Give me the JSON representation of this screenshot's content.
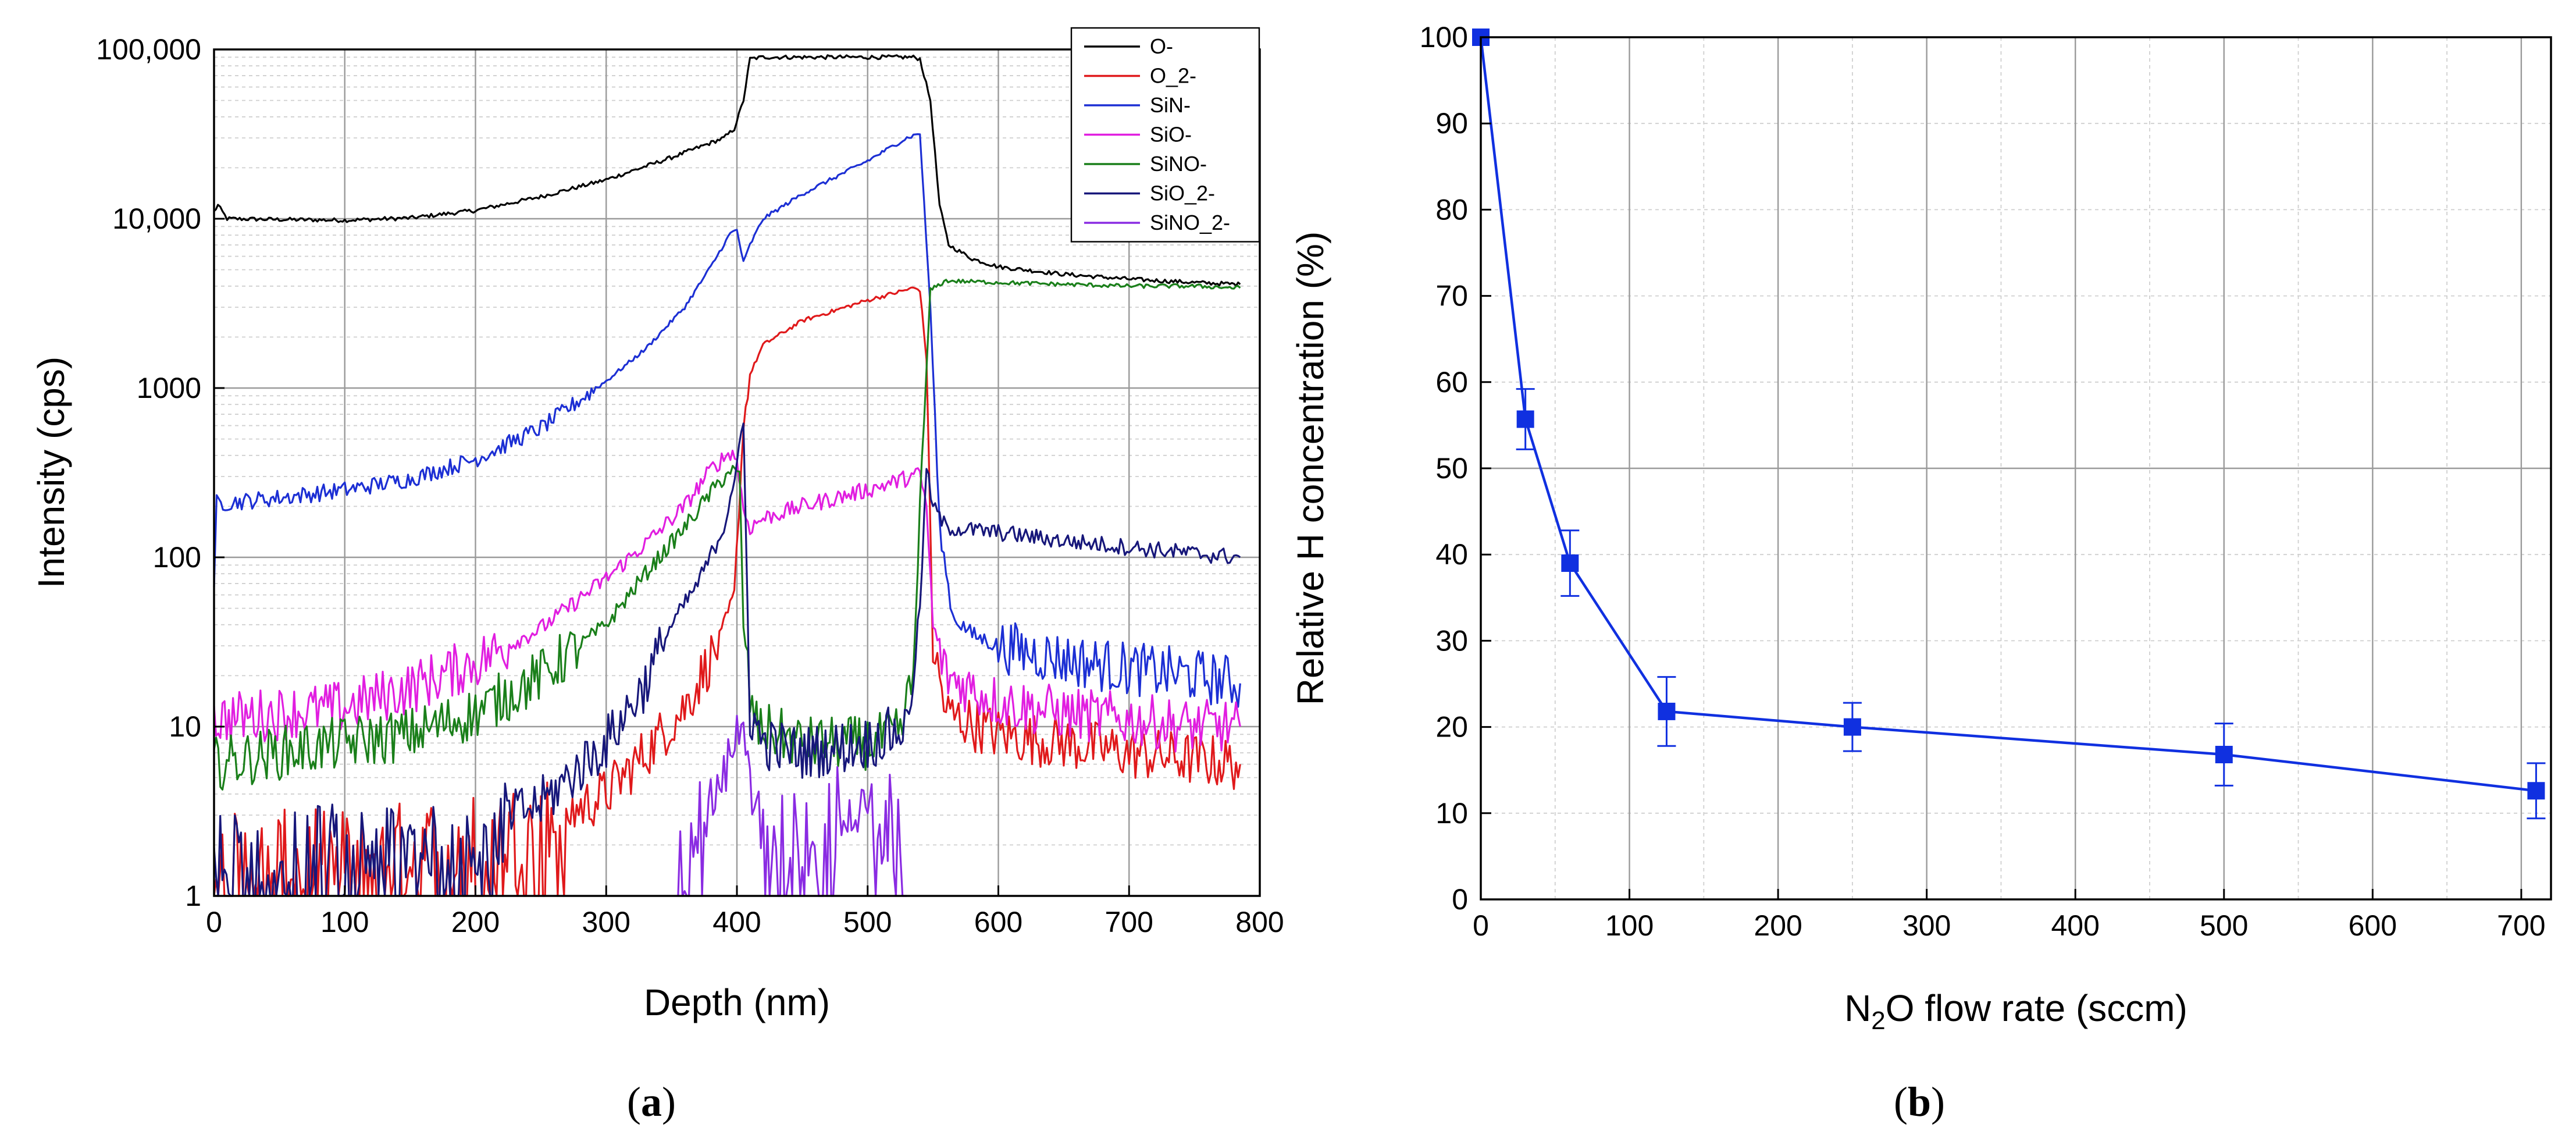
{
  "chart_data": [
    {
      "panel": "(a)",
      "type": "line",
      "title": "",
      "xlabel": "Depth (nm)",
      "ylabel": "Intensity (cps)",
      "xscale": "linear",
      "yscale": "log",
      "xlim": [
        0,
        800
      ],
      "ylim": [
        1,
        100000
      ],
      "grid": true,
      "legend_position": "top-right",
      "x_ticks": [
        0,
        100,
        200,
        300,
        400,
        500,
        600,
        700,
        800
      ],
      "x_tick_labels": [
        "0",
        "100",
        "200",
        "300",
        "400",
        "500",
        "600",
        "700",
        "800"
      ],
      "y_ticks": [
        1,
        10,
        100,
        1000,
        10000,
        100000
      ],
      "y_tick_labels": [
        "1",
        "10",
        "100",
        "1000",
        "10,000",
        "100,000"
      ],
      "series": [
        {
          "name": "O-",
          "color": "#000000",
          "x": [
            0,
            3,
            10,
            50,
            100,
            150,
            200,
            250,
            300,
            350,
            390,
            398,
            405,
            410,
            420,
            450,
            500,
            535,
            540,
            548,
            555,
            562,
            580,
            600,
            650,
            700,
            750,
            785
          ],
          "y": [
            11000,
            12000,
            10000,
            9900,
            9800,
            10100,
            11200,
            13500,
            17000,
            23000,
            30000,
            34000,
            50000,
            88000,
            90000,
            90000,
            90000,
            90000,
            88000,
            50000,
            12000,
            7000,
            5800,
            5200,
            4700,
            4400,
            4200,
            4100
          ]
        },
        {
          "name": "O_2-",
          "color": "#e0191b",
          "x": [
            0,
            100,
            150,
            200,
            250,
            300,
            330,
            360,
            385,
            398,
            405,
            410,
            420,
            450,
            500,
            535,
            540,
            545,
            550,
            560,
            600,
            650,
            700,
            785
          ],
          "y": [
            1.5,
            1.6,
            1.8,
            2,
            2.5,
            4,
            7,
            13,
            30,
            60,
            600,
            1200,
            1800,
            2500,
            3300,
            3900,
            3800,
            1500,
            30,
            12,
            9,
            8,
            7,
            6
          ]
        },
        {
          "name": "SiN-",
          "color": "#1c2fd4",
          "x": [
            0,
            2,
            10,
            50,
            100,
            150,
            200,
            250,
            300,
            330,
            360,
            380,
            395,
            400,
            405,
            410,
            420,
            450,
            500,
            530,
            540,
            548,
            555,
            565,
            580,
            600,
            650,
            700,
            750,
            785
          ],
          "y": [
            60,
            210,
            210,
            225,
            250,
            290,
            380,
            580,
            1100,
            1700,
            3000,
            5200,
            8200,
            8600,
            5500,
            7000,
            10000,
            14000,
            22000,
            30000,
            32000,
            3000,
            150,
            45,
            35,
            30,
            25,
            22,
            20,
            18
          ]
        },
        {
          "name": "SiO-",
          "color": "#e11ee0",
          "x": [
            0,
            50,
            100,
            150,
            200,
            250,
            300,
            330,
            360,
            380,
            395,
            400,
            405,
            410,
            420,
            450,
            500,
            540,
            545,
            550,
            560,
            600,
            650,
            700,
            750,
            785
          ],
          "y": [
            11,
            12,
            13,
            17,
            24,
            38,
            75,
            120,
            200,
            330,
            420,
            380,
            190,
            150,
            170,
            200,
            250,
            310,
            200,
            40,
            20,
            14,
            12,
            11,
            10,
            10
          ]
        },
        {
          "name": "SiNO-",
          "color": "#1a7f1a",
          "x": [
            0,
            50,
            100,
            150,
            200,
            250,
            300,
            330,
            360,
            380,
            395,
            402,
            405,
            410,
            415,
            450,
            500,
            525,
            535,
            540,
            548,
            560,
            600,
            650,
            700,
            750,
            785
          ],
          "y": [
            6,
            7,
            8,
            9,
            12,
            20,
            40,
            80,
            150,
            240,
            330,
            300,
            40,
            15,
            10,
            8,
            8,
            9,
            20,
            200,
            3800,
            4300,
            4200,
            4100,
            4000,
            4000,
            3900
          ]
        },
        {
          "name": "SiO_2-",
          "color": "#17177a",
          "x": [
            0,
            100,
            150,
            200,
            250,
            300,
            330,
            350,
            370,
            390,
            400,
            405,
            410,
            420,
            450,
            500,
            530,
            540,
            545,
            550,
            560,
            600,
            650,
            700,
            750,
            785
          ],
          "y": [
            1.5,
            1.8,
            2,
            2.5,
            3.5,
            8,
            18,
            40,
            70,
            150,
            350,
            600,
            12,
            8,
            7,
            8,
            10,
            50,
            330,
            200,
            150,
            140,
            125,
            115,
            105,
            100
          ]
        },
        {
          "name": "SiNO_2-",
          "color": "#8a2be2",
          "x": [
            355,
            360,
            375,
            390,
            400,
            405,
            410,
            415,
            430,
            450,
            480,
            500,
            520,
            530
          ],
          "y": [
            1,
            2,
            3,
            5,
            9,
            12,
            6,
            2,
            2,
            2.5,
            3,
            3,
            2.5,
            1
          ]
        }
      ]
    },
    {
      "panel": "(b)",
      "type": "line",
      "title": "",
      "xlabel_parts": [
        "N",
        "2",
        "O flow rate (sccm)"
      ],
      "ylabel": "Relative H concentration (%)",
      "xlim": [
        0,
        720
      ],
      "ylim": [
        0,
        100
      ],
      "grid": true,
      "marker": "square",
      "color": "#1030e0",
      "x_ticks": [
        0,
        100,
        200,
        300,
        400,
        500,
        600,
        700
      ],
      "x_tick_labels": [
        "0",
        "100",
        "200",
        "300",
        "400",
        "500",
        "600",
        "700"
      ],
      "y_ticks": [
        0,
        10,
        20,
        30,
        40,
        50,
        60,
        70,
        80,
        90,
        100
      ],
      "y_tick_labels": [
        "0",
        "10",
        "20",
        "30",
        "40",
        "50",
        "60",
        "70",
        "80",
        "90",
        "100"
      ],
      "series": [
        {
          "name": "Relative H concentration",
          "x": [
            0,
            30,
            60,
            125,
            250,
            500,
            710
          ],
          "y": [
            100,
            55.7,
            39,
            21.8,
            20,
            16.8,
            12.6
          ],
          "error": [
            0,
            3.5,
            3.8,
            4.0,
            2.8,
            3.6,
            3.2
          ]
        }
      ]
    }
  ]
}
